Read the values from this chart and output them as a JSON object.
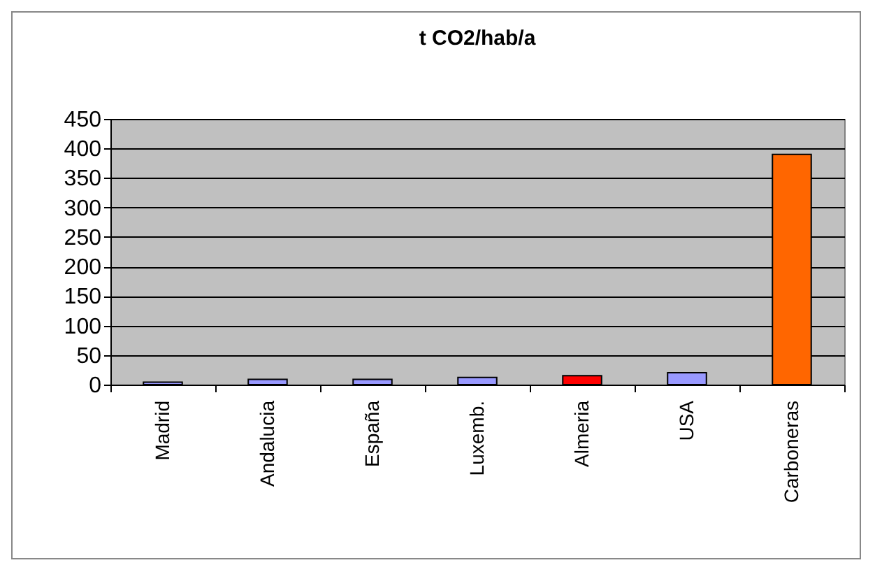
{
  "chart_data": {
    "type": "bar",
    "title": "t CO2/hab/a",
    "categories": [
      "Madrid",
      "Andalucia",
      "España",
      "Luxemb.",
      "Almeria",
      "USA",
      "Carboneras"
    ],
    "values": [
      4,
      9,
      9,
      12,
      15,
      20,
      390
    ],
    "colors": [
      "#9999ff",
      "#9999ff",
      "#9999ff",
      "#9999ff",
      "#ff0000",
      "#9999ff",
      "#ff6600"
    ],
    "ylim": [
      0,
      450
    ],
    "yticks": [
      0,
      50,
      100,
      150,
      200,
      250,
      300,
      350,
      400,
      450
    ],
    "grid": "y",
    "legend": false
  }
}
